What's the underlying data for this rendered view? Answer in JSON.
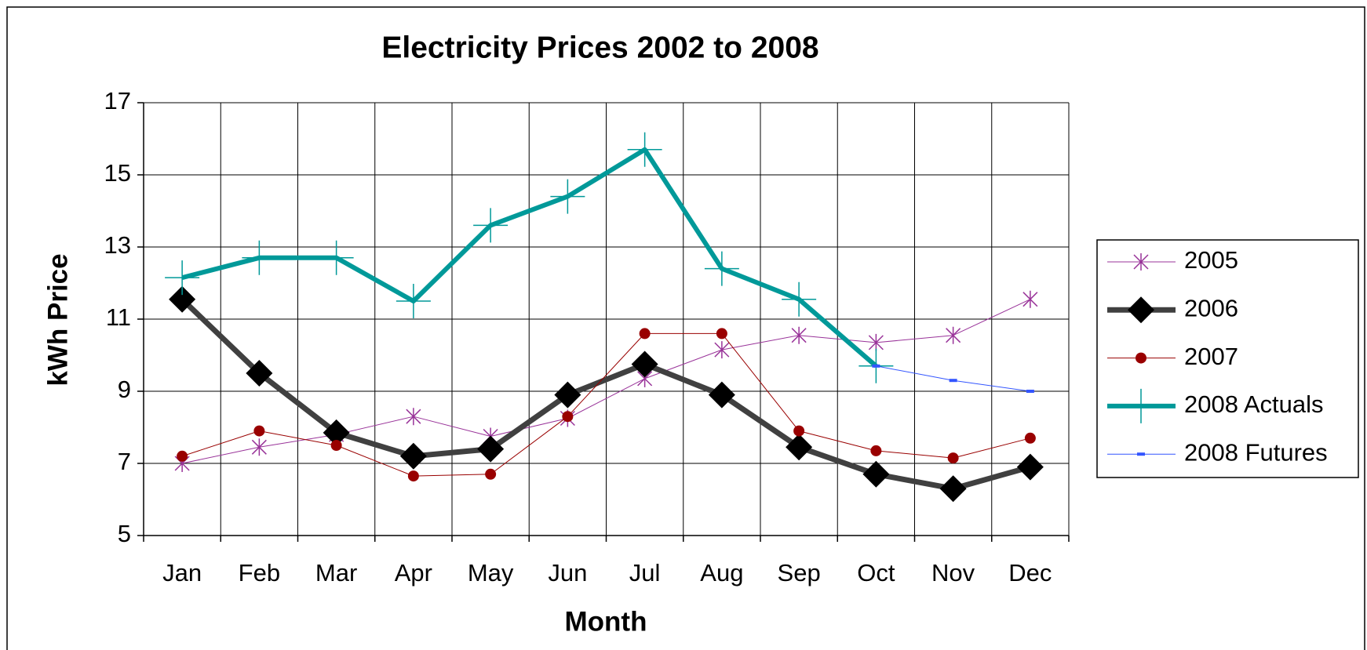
{
  "chart_data": {
    "type": "line",
    "title": "Electricity Prices 2002 to 2008",
    "x_label": "Month",
    "y_label": "kWh Price",
    "categories": [
      "Jan",
      "Feb",
      "Mar",
      "Apr",
      "May",
      "Jun",
      "Jul",
      "Aug",
      "Sep",
      "Oct",
      "Nov",
      "Dec"
    ],
    "series": [
      {
        "name": "2005",
        "color": "#993399",
        "width": 1,
        "marker": "star",
        "values": [
          7.0,
          7.45,
          7.8,
          8.3,
          7.75,
          8.25,
          9.35,
          10.15,
          10.55,
          10.35,
          10.55,
          11.55
        ]
      },
      {
        "name": "2006",
        "color": "#404040",
        "width": 7,
        "marker": "diamond",
        "values": [
          11.55,
          9.5,
          7.85,
          7.2,
          7.4,
          8.9,
          9.75,
          8.9,
          7.45,
          6.7,
          6.3,
          6.9
        ]
      },
      {
        "name": "2007",
        "color": "#990000",
        "width": 1,
        "marker": "circle",
        "values": [
          7.2,
          7.9,
          7.5,
          6.65,
          6.7,
          8.3,
          10.6,
          10.6,
          7.9,
          7.35,
          7.15,
          7.7
        ]
      },
      {
        "name": "2008 Actuals",
        "color": "#009999",
        "width": 6,
        "marker": "plus",
        "values": [
          12.15,
          12.7,
          12.7,
          11.5,
          13.6,
          14.4,
          15.7,
          12.4,
          11.55,
          9.7,
          null,
          null
        ]
      },
      {
        "name": "2008 Futures",
        "color": "#3355ff",
        "width": 1,
        "marker": "dash",
        "values": [
          null,
          null,
          null,
          null,
          null,
          null,
          null,
          null,
          null,
          9.7,
          9.3,
          9.0
        ]
      }
    ],
    "ylim": [
      5,
      17
    ],
    "yticks": [
      5,
      7,
      9,
      11,
      13,
      15,
      17
    ],
    "grid": true,
    "legend": "right"
  }
}
